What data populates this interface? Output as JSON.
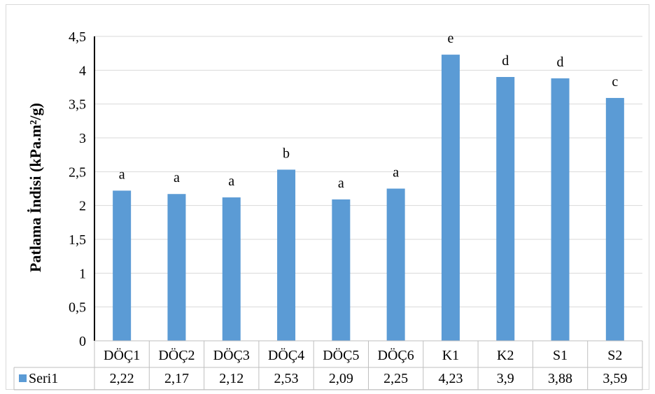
{
  "chart_data": {
    "type": "bar",
    "title": "",
    "xlabel": "",
    "ylabel": "Patlama İndisi (kPa.m²/g)",
    "categories": [
      "DÖÇ1",
      "DÖÇ2",
      "DÖÇ3",
      "DÖÇ4",
      "DÖÇ5",
      "DÖÇ6",
      "K1",
      "K2",
      "S1",
      "S2"
    ],
    "series": [
      {
        "name": "Seri1",
        "values": [
          2.22,
          2.17,
          2.12,
          2.53,
          2.09,
          2.25,
          4.23,
          3.9,
          3.88,
          3.59
        ],
        "value_labels": [
          "2,22",
          "2,17",
          "2,12",
          "2,53",
          "2,09",
          "2,25",
          "4,23",
          "3,9",
          "3,88",
          "3,59"
        ],
        "letters": [
          "a",
          "a",
          "a",
          "b",
          "a",
          "a",
          "e",
          "d",
          "d",
          "c"
        ],
        "color": "#5b9bd5"
      }
    ],
    "ylim": [
      0,
      4.5
    ],
    "yticks": [
      "0",
      "0,5",
      "1",
      "1,5",
      "2",
      "2,5",
      "3",
      "3,5",
      "4",
      "4,5"
    ],
    "grid": true,
    "legend": "data-table",
    "gridline_color": "#d9d9d9"
  }
}
